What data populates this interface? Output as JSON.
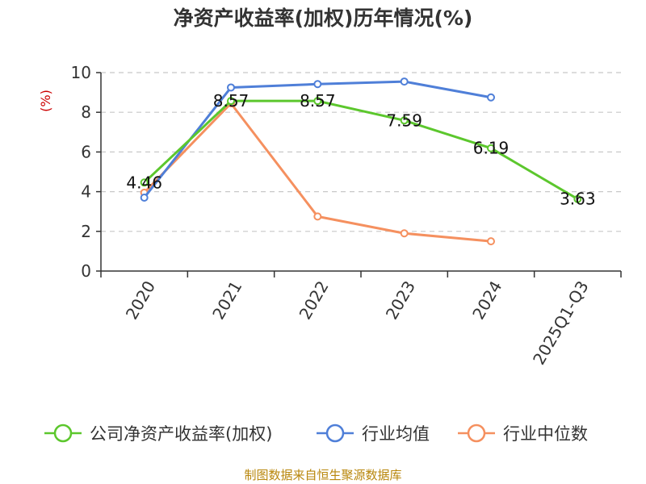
{
  "chart_data": {
    "type": "line",
    "title": "净资产收益率(加权)历年情况(%)",
    "ylabel": "(%)",
    "xlabel": "",
    "categories": [
      "2020",
      "2021",
      "2022",
      "2023",
      "2024",
      "2025Q1-Q3"
    ],
    "ylim": [
      0,
      10
    ],
    "yticks": [
      0,
      2,
      4,
      6,
      8,
      10
    ],
    "grid": true,
    "legend_position": "bottom",
    "series": [
      {
        "name": "公司净资产收益率(加权)",
        "color": "#5cc72d",
        "values": [
          4.46,
          8.57,
          8.57,
          7.59,
          6.19,
          3.63
        ],
        "labels": [
          "4.46",
          "8.57",
          "8.57",
          "7.59",
          "6.19",
          "3.63"
        ]
      },
      {
        "name": "行业均值",
        "color": "#4f7fd8",
        "values": [
          3.7,
          9.25,
          9.42,
          9.55,
          8.75,
          null
        ]
      },
      {
        "name": "行业中位数",
        "color": "#f5905f",
        "values": [
          3.95,
          8.45,
          2.75,
          1.9,
          1.5,
          null
        ]
      }
    ],
    "source": "制图数据来自恒生聚源数据库"
  }
}
